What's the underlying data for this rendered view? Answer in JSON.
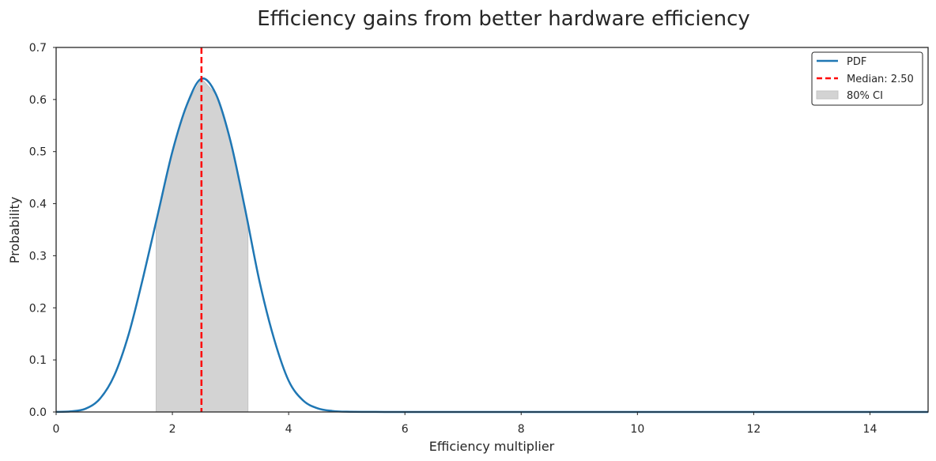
{
  "chart_data": {
    "type": "line",
    "title": "Efficiency gains from better hardware efficiency",
    "xlabel": "Efficiency multiplier",
    "ylabel": "Probability",
    "xlim": [
      0,
      15
    ],
    "ylim": [
      0,
      0.7
    ],
    "xticks": [
      0,
      2,
      4,
      6,
      8,
      10,
      12,
      14
    ],
    "xtick_labels": [
      "0",
      "2",
      "4",
      "6",
      "8",
      "10",
      "12",
      "14"
    ],
    "yticks": [
      0,
      0.1,
      0.2,
      0.3,
      0.4,
      0.5,
      0.6,
      0.7
    ],
    "ytick_labels": [
      "0.0",
      "0.1",
      "0.2",
      "0.3",
      "0.4",
      "0.5",
      "0.6",
      "0.7"
    ],
    "grid": false,
    "legend_position": "top-right",
    "series": [
      {
        "name": "PDF",
        "color": "#1f77b4",
        "x": [
          0,
          0.25,
          0.5,
          0.75,
          1.0,
          1.25,
          1.5,
          1.75,
          2.0,
          2.25,
          2.5,
          2.75,
          3.0,
          3.25,
          3.5,
          3.75,
          4.0,
          4.25,
          4.5,
          4.75,
          5.0,
          5.5,
          6,
          7,
          8,
          9,
          10,
          11,
          12,
          13,
          14,
          15
        ],
        "y": [
          0.0001,
          0.0012,
          0.006,
          0.025,
          0.07,
          0.15,
          0.26,
          0.38,
          0.5,
          0.59,
          0.64,
          0.61,
          0.52,
          0.39,
          0.25,
          0.14,
          0.06,
          0.022,
          0.007,
          0.002,
          0.0005,
          0.0001,
          0,
          0,
          0,
          0,
          0,
          0,
          0,
          0,
          0,
          0
        ]
      }
    ],
    "median": {
      "label": "Median: 2.50",
      "value": 2.5,
      "color": "#ff0000"
    },
    "ci": {
      "label": "80% CI",
      "low": 1.72,
      "high": 3.3,
      "color": "#d3d3d3"
    }
  }
}
